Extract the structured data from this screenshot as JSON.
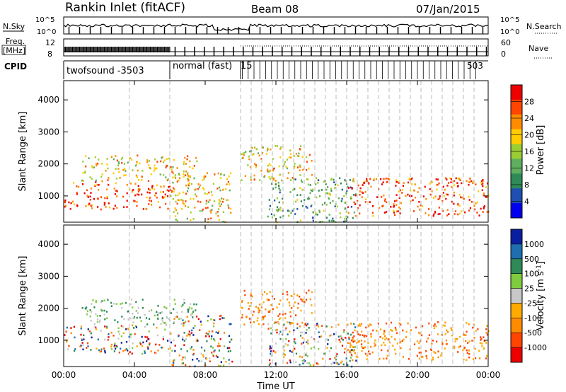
{
  "header": {
    "title": "Rankin Inlet (fitACF)",
    "beam": "Beam 08",
    "date": "07/Jan/2015"
  },
  "strip": {
    "nsky_label": "N.Sky",
    "nsearch_label": "N.Search",
    "nsky_ticks": [
      "10^5",
      "10^0"
    ],
    "nsearch_ticks": [
      "10^5",
      "10^0"
    ],
    "freq_label_1": "Freq.",
    "freq_label_2": "[MHz]",
    "freq_ticks": [
      "12",
      "8"
    ],
    "nave_label": "Nave",
    "nave_ticks": [
      "60",
      "0"
    ],
    "cpid_label": "CPID",
    "cpid_modes": [
      "twofsound -3503",
      "normal (fast)",
      "15"
    ],
    "cpid_tail": "503"
  },
  "axes": {
    "xlabel": "Time UT",
    "xticks": [
      "00:00",
      "04:00",
      "08:00",
      "12:00",
      "16:00",
      "20:00",
      "00:00"
    ],
    "ylabel": "Slant Range [km]",
    "yticks": [
      "1000",
      "2000",
      "3000",
      "4000"
    ]
  },
  "colors": {
    "power": [
      "#0000ee",
      "#1f4fb0",
      "#2e8b57",
      "#5fae5f",
      "#9acd32",
      "#ffcc00",
      "#ff8c00",
      "#ff4500",
      "#ee0000"
    ],
    "velocity": [
      "#ee0000",
      "#ff4500",
      "#ff8c00",
      "#ffaa00",
      "#c8c8c8",
      "#7fcc3f",
      "#2e8b57",
      "#1e6fb0",
      "#0a1fa0"
    ]
  },
  "chart_data": [
    {
      "type": "heatmap",
      "title": "Power",
      "xlabel": "Time UT",
      "ylabel": "Slant Range [km]",
      "xlim": [
        0,
        24
      ],
      "ylim": [
        180,
        4600
      ],
      "colorbar": {
        "label": "Power [dB]",
        "ticks": [
          "4",
          "8",
          "12",
          "16",
          "20",
          "24",
          "28"
        ],
        "range": [
          0,
          32
        ]
      },
      "regions": [
        {
          "t0": 0.0,
          "t1": 6.0,
          "r0": 600,
          "r1": 1500,
          "level": "high"
        },
        {
          "t0": 1.0,
          "t1": 7.5,
          "r0": 1500,
          "r1": 2300,
          "level": "medium"
        },
        {
          "t0": 6.0,
          "t1": 9.5,
          "r0": 200,
          "r1": 1800,
          "level": "medium"
        },
        {
          "t0": 10.0,
          "t1": 14.0,
          "r0": 1500,
          "r1": 2600,
          "level": "medium"
        },
        {
          "t0": 11.5,
          "t1": 16.5,
          "r0": 200,
          "r1": 1600,
          "level": "low"
        },
        {
          "t0": 16.0,
          "t1": 24.0,
          "r0": 400,
          "r1": 1600,
          "level": "high"
        }
      ]
    },
    {
      "type": "heatmap",
      "title": "Velocity",
      "xlabel": "Time UT",
      "ylabel": "Slant Range [km]",
      "xlim": [
        0,
        24
      ],
      "ylim": [
        180,
        4600
      ],
      "colorbar": {
        "label": "Velocity [m s^-1]",
        "ticks": [
          "1000",
          "500",
          "100",
          "25",
          "-25",
          "-100",
          "-500",
          "-1000"
        ],
        "range": [
          -1200,
          1200
        ]
      },
      "regions": [
        {
          "t0": 0.0,
          "t1": 6.0,
          "r0": 600,
          "r1": 1500,
          "level": "mixed"
        },
        {
          "t0": 1.0,
          "t1": 7.5,
          "r0": 1500,
          "r1": 2300,
          "level": "low"
        },
        {
          "t0": 6.0,
          "t1": 9.5,
          "r0": 200,
          "r1": 1800,
          "level": "mixed"
        },
        {
          "t0": 10.0,
          "t1": 14.0,
          "r0": 1500,
          "r1": 2600,
          "level": "negative"
        },
        {
          "t0": 11.5,
          "t1": 16.5,
          "r0": 200,
          "r1": 1600,
          "level": "mixed"
        },
        {
          "t0": 16.0,
          "t1": 24.0,
          "r0": 400,
          "r1": 1600,
          "level": "negative"
        }
      ]
    }
  ]
}
